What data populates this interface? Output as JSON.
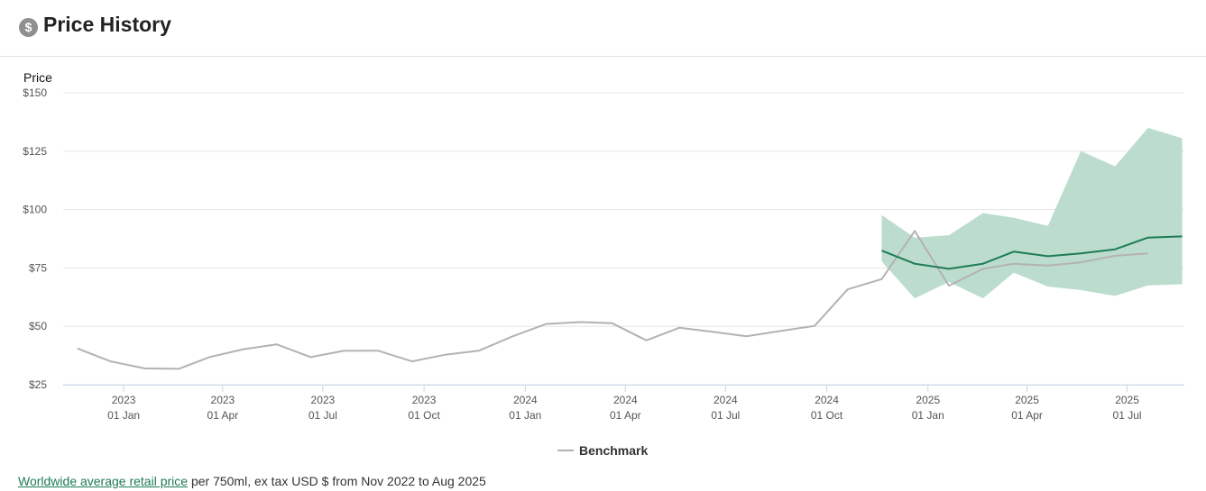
{
  "header": {
    "icon": "dollar-icon",
    "icon_glyph": "$",
    "title": "Price History"
  },
  "chart_data": {
    "type": "line",
    "ylabel": "Price",
    "ylim": [
      25,
      150
    ],
    "yticks": [
      25,
      50,
      75,
      100,
      125,
      150
    ],
    "ytick_labels": [
      "$25",
      "$50",
      "$75",
      "$100",
      "$125",
      "$150"
    ],
    "xlim": [
      "2022-11-07",
      "2025-08-22"
    ],
    "xticks": [
      {
        "date": "2023-01-01",
        "year": "2023",
        "label": "01 Jan"
      },
      {
        "date": "2023-04-01",
        "year": "2023",
        "label": "01 Apr"
      },
      {
        "date": "2023-07-01",
        "year": "2023",
        "label": "01 Jul"
      },
      {
        "date": "2023-10-01",
        "year": "2023",
        "label": "01 Oct"
      },
      {
        "date": "2024-01-01",
        "year": "2024",
        "label": "01 Jan"
      },
      {
        "date": "2024-04-01",
        "year": "2024",
        "label": "01 Apr"
      },
      {
        "date": "2024-07-01",
        "year": "2024",
        "label": "01 Jul"
      },
      {
        "date": "2024-10-01",
        "year": "2024",
        "label": "01 Oct"
      },
      {
        "date": "2025-01-01",
        "year": "2025",
        "label": "01 Jan"
      },
      {
        "date": "2025-04-01",
        "year": "2025",
        "label": "01 Apr"
      },
      {
        "date": "2025-07-01",
        "year": "2025",
        "label": "01 Jul"
      }
    ],
    "grid": true,
    "legend_position": "bottom-center",
    "colors": {
      "benchmark": "#b4b2b2",
      "product": "#1e7d55",
      "band": "#bcdcce"
    },
    "series": [
      {
        "name": "Benchmark",
        "points": [
          [
            "2022-11-20",
            40.5
          ],
          [
            "2022-12-20",
            35.0
          ],
          [
            "2023-01-20",
            32.0
          ],
          [
            "2023-02-20",
            31.8
          ],
          [
            "2023-03-20",
            36.8
          ],
          [
            "2023-04-20",
            40.2
          ],
          [
            "2023-05-20",
            42.3
          ],
          [
            "2023-06-20",
            36.8
          ],
          [
            "2023-07-20",
            39.5
          ],
          [
            "2023-08-20",
            39.6
          ],
          [
            "2023-09-20",
            35.0
          ],
          [
            "2023-10-20",
            37.8
          ],
          [
            "2023-11-20",
            39.6
          ],
          [
            "2023-12-20",
            45.6
          ],
          [
            "2024-01-20",
            51.0
          ],
          [
            "2024-02-20",
            51.8
          ],
          [
            "2024-03-20",
            51.3
          ],
          [
            "2024-04-20",
            44.0
          ],
          [
            "2024-05-20",
            49.4
          ],
          [
            "2024-06-20",
            47.6
          ],
          [
            "2024-07-20",
            45.7
          ],
          [
            "2024-08-20",
            48.0
          ],
          [
            "2024-09-20",
            50.2
          ],
          [
            "2024-10-20",
            65.8
          ],
          [
            "2024-11-20",
            70.2
          ],
          [
            "2024-12-20",
            90.8
          ],
          [
            "2025-01-20",
            67.4
          ],
          [
            "2025-02-20",
            74.6
          ],
          [
            "2025-03-20",
            76.8
          ],
          [
            "2025-04-20",
            76.0
          ],
          [
            "2025-05-20",
            77.4
          ],
          [
            "2025-06-20",
            80.2
          ],
          [
            "2025-07-20",
            81.2
          ]
        ]
      },
      {
        "points": [
          [
            "2024-11-20",
            82.4
          ],
          [
            "2024-12-20",
            76.8
          ],
          [
            "2025-01-20",
            74.6
          ],
          [
            "2025-02-20",
            76.8
          ],
          [
            "2025-03-20",
            82.0
          ],
          [
            "2025-04-20",
            80.0
          ],
          [
            "2025-05-20",
            81.2
          ],
          [
            "2025-06-20",
            83.0
          ],
          [
            "2025-07-20",
            88.0
          ],
          [
            "2025-08-20",
            88.5
          ]
        ]
      }
    ],
    "range_band": {
      "points": [
        [
          "2024-11-20",
          77.8,
          97.6
        ],
        [
          "2024-12-20",
          62.0,
          88.0
        ],
        [
          "2025-01-20",
          69.0,
          89.0
        ],
        [
          "2025-02-20",
          62.0,
          98.5
        ],
        [
          "2025-03-20",
          73.0,
          96.5
        ],
        [
          "2025-04-20",
          67.0,
          93.0
        ],
        [
          "2025-05-20",
          65.5,
          125.0
        ],
        [
          "2025-06-20",
          63.0,
          118.5
        ],
        [
          "2025-07-20",
          67.5,
          135.0
        ],
        [
          "2025-08-20",
          68.0,
          130.5
        ]
      ]
    }
  },
  "legend": {
    "label": "Benchmark"
  },
  "footer": {
    "link_text": "Worldwide average retail price",
    "rest_text": " per 750ml, ex tax USD $ from Nov 2022 to Aug 2025"
  }
}
